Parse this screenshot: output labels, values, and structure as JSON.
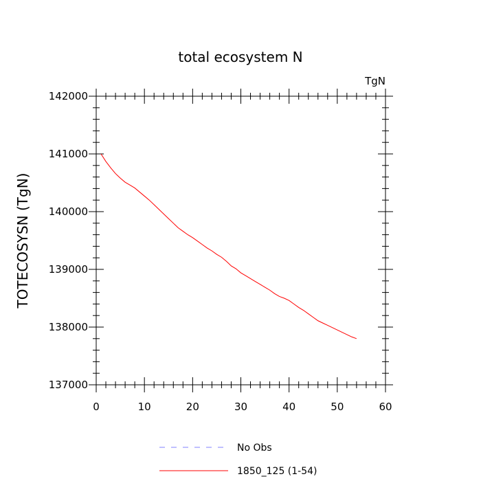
{
  "chart_data": {
    "type": "line",
    "title": "total ecosystem N",
    "units": "TgN",
    "xlabel": "",
    "ylabel": "TOTECOSYSN  (TgN)",
    "xlim": [
      0,
      60
    ],
    "ylim": [
      137000,
      142000
    ],
    "x_ticks": [
      "0",
      "10",
      "20",
      "30",
      "40",
      "50",
      "60"
    ],
    "y_ticks": [
      "137000",
      "138000",
      "139000",
      "140000",
      "141000",
      "142000"
    ],
    "grid": false,
    "legend_position": "bottom",
    "series": [
      {
        "name": "No Obs",
        "color": "#8080ff",
        "dash": "dashed",
        "x": [],
        "y": []
      },
      {
        "name": "1850_125 (1-54)",
        "color": "#ff0000",
        "dash": "solid",
        "x": [
          1,
          2,
          3,
          4,
          5,
          6,
          7,
          8,
          9,
          10,
          11,
          12,
          13,
          14,
          15,
          16,
          17,
          18,
          19,
          20,
          21,
          22,
          23,
          24,
          25,
          26,
          27,
          28,
          29,
          30,
          31,
          32,
          33,
          34,
          35,
          36,
          37,
          38,
          39,
          40,
          41,
          42,
          43,
          44,
          45,
          46,
          47,
          48,
          49,
          50,
          51,
          52,
          53,
          54
        ],
        "y": [
          141000,
          140870,
          140760,
          140660,
          140580,
          140510,
          140460,
          140410,
          140340,
          140270,
          140200,
          140120,
          140040,
          139960,
          139880,
          139800,
          139720,
          139660,
          139600,
          139550,
          139490,
          139430,
          139370,
          139320,
          139260,
          139210,
          139140,
          139060,
          139010,
          138940,
          138890,
          138840,
          138790,
          138740,
          138690,
          138640,
          138580,
          138530,
          138500,
          138460,
          138400,
          138340,
          138290,
          138230,
          138170,
          138110,
          138070,
          138030,
          137990,
          137950,
          137910,
          137870,
          137830,
          137800
        ]
      }
    ]
  }
}
